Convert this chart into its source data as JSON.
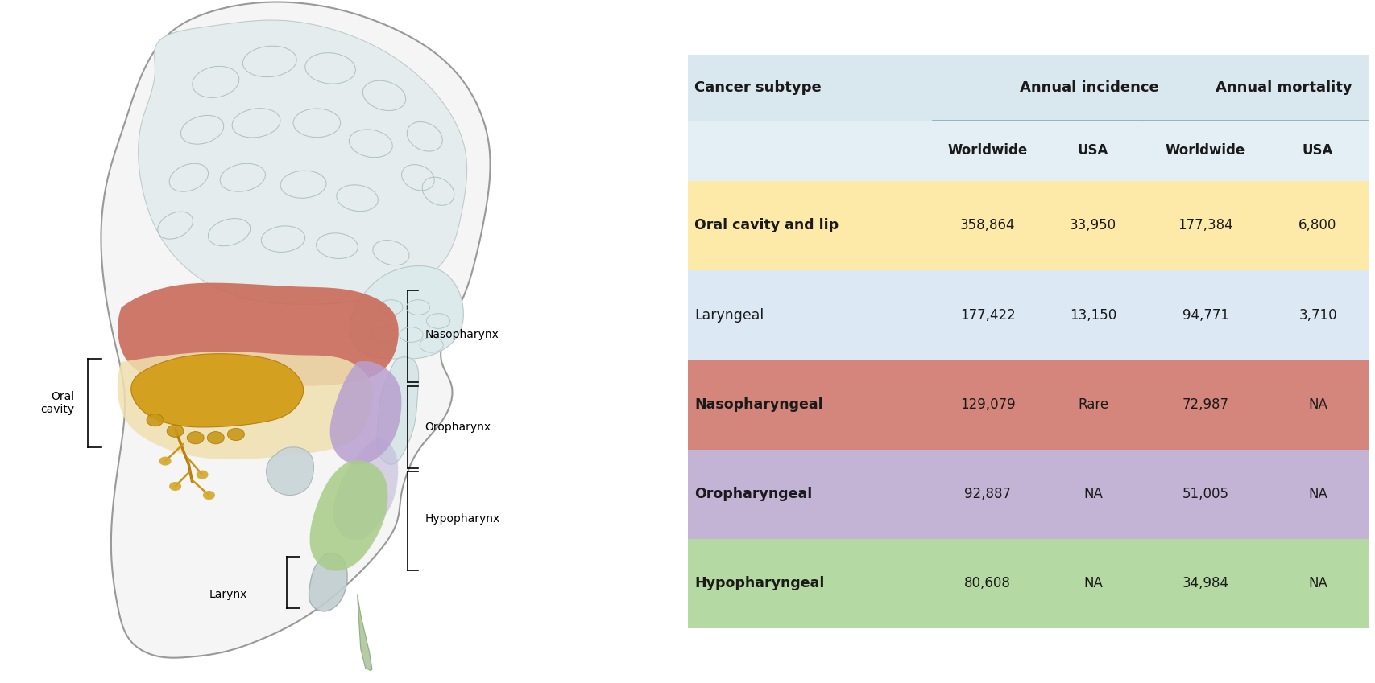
{
  "table": {
    "rows": [
      {
        "label": "Oral cavity and lip",
        "values": [
          "358,864",
          "33,950",
          "177,384",
          "6,800"
        ],
        "bg_color": "#FDEAA8",
        "label_bold": true
      },
      {
        "label": "Laryngeal",
        "values": [
          "177,422",
          "13,150",
          "94,771",
          "3,710"
        ],
        "bg_color": "#DCE9F5",
        "label_bold": false
      },
      {
        "label": "Nasopharyngeal",
        "values": [
          "129,079",
          "Rare",
          "72,987",
          "NA"
        ],
        "bg_color": "#D4857C",
        "label_bold": true
      },
      {
        "label": "Oropharyngeal",
        "values": [
          "92,887",
          "NA",
          "51,005",
          "NA"
        ],
        "bg_color": "#C3B4D6",
        "label_bold": true
      },
      {
        "label": "Hypopharyngeal",
        "values": [
          "80,608",
          "NA",
          "34,984",
          "NA"
        ],
        "bg_color": "#B5D9A2",
        "label_bold": true
      }
    ],
    "header_bg": "#D8E8EE",
    "header_sub_bg": "#E4EFF5"
  },
  "background_color": "#FFFFFF"
}
